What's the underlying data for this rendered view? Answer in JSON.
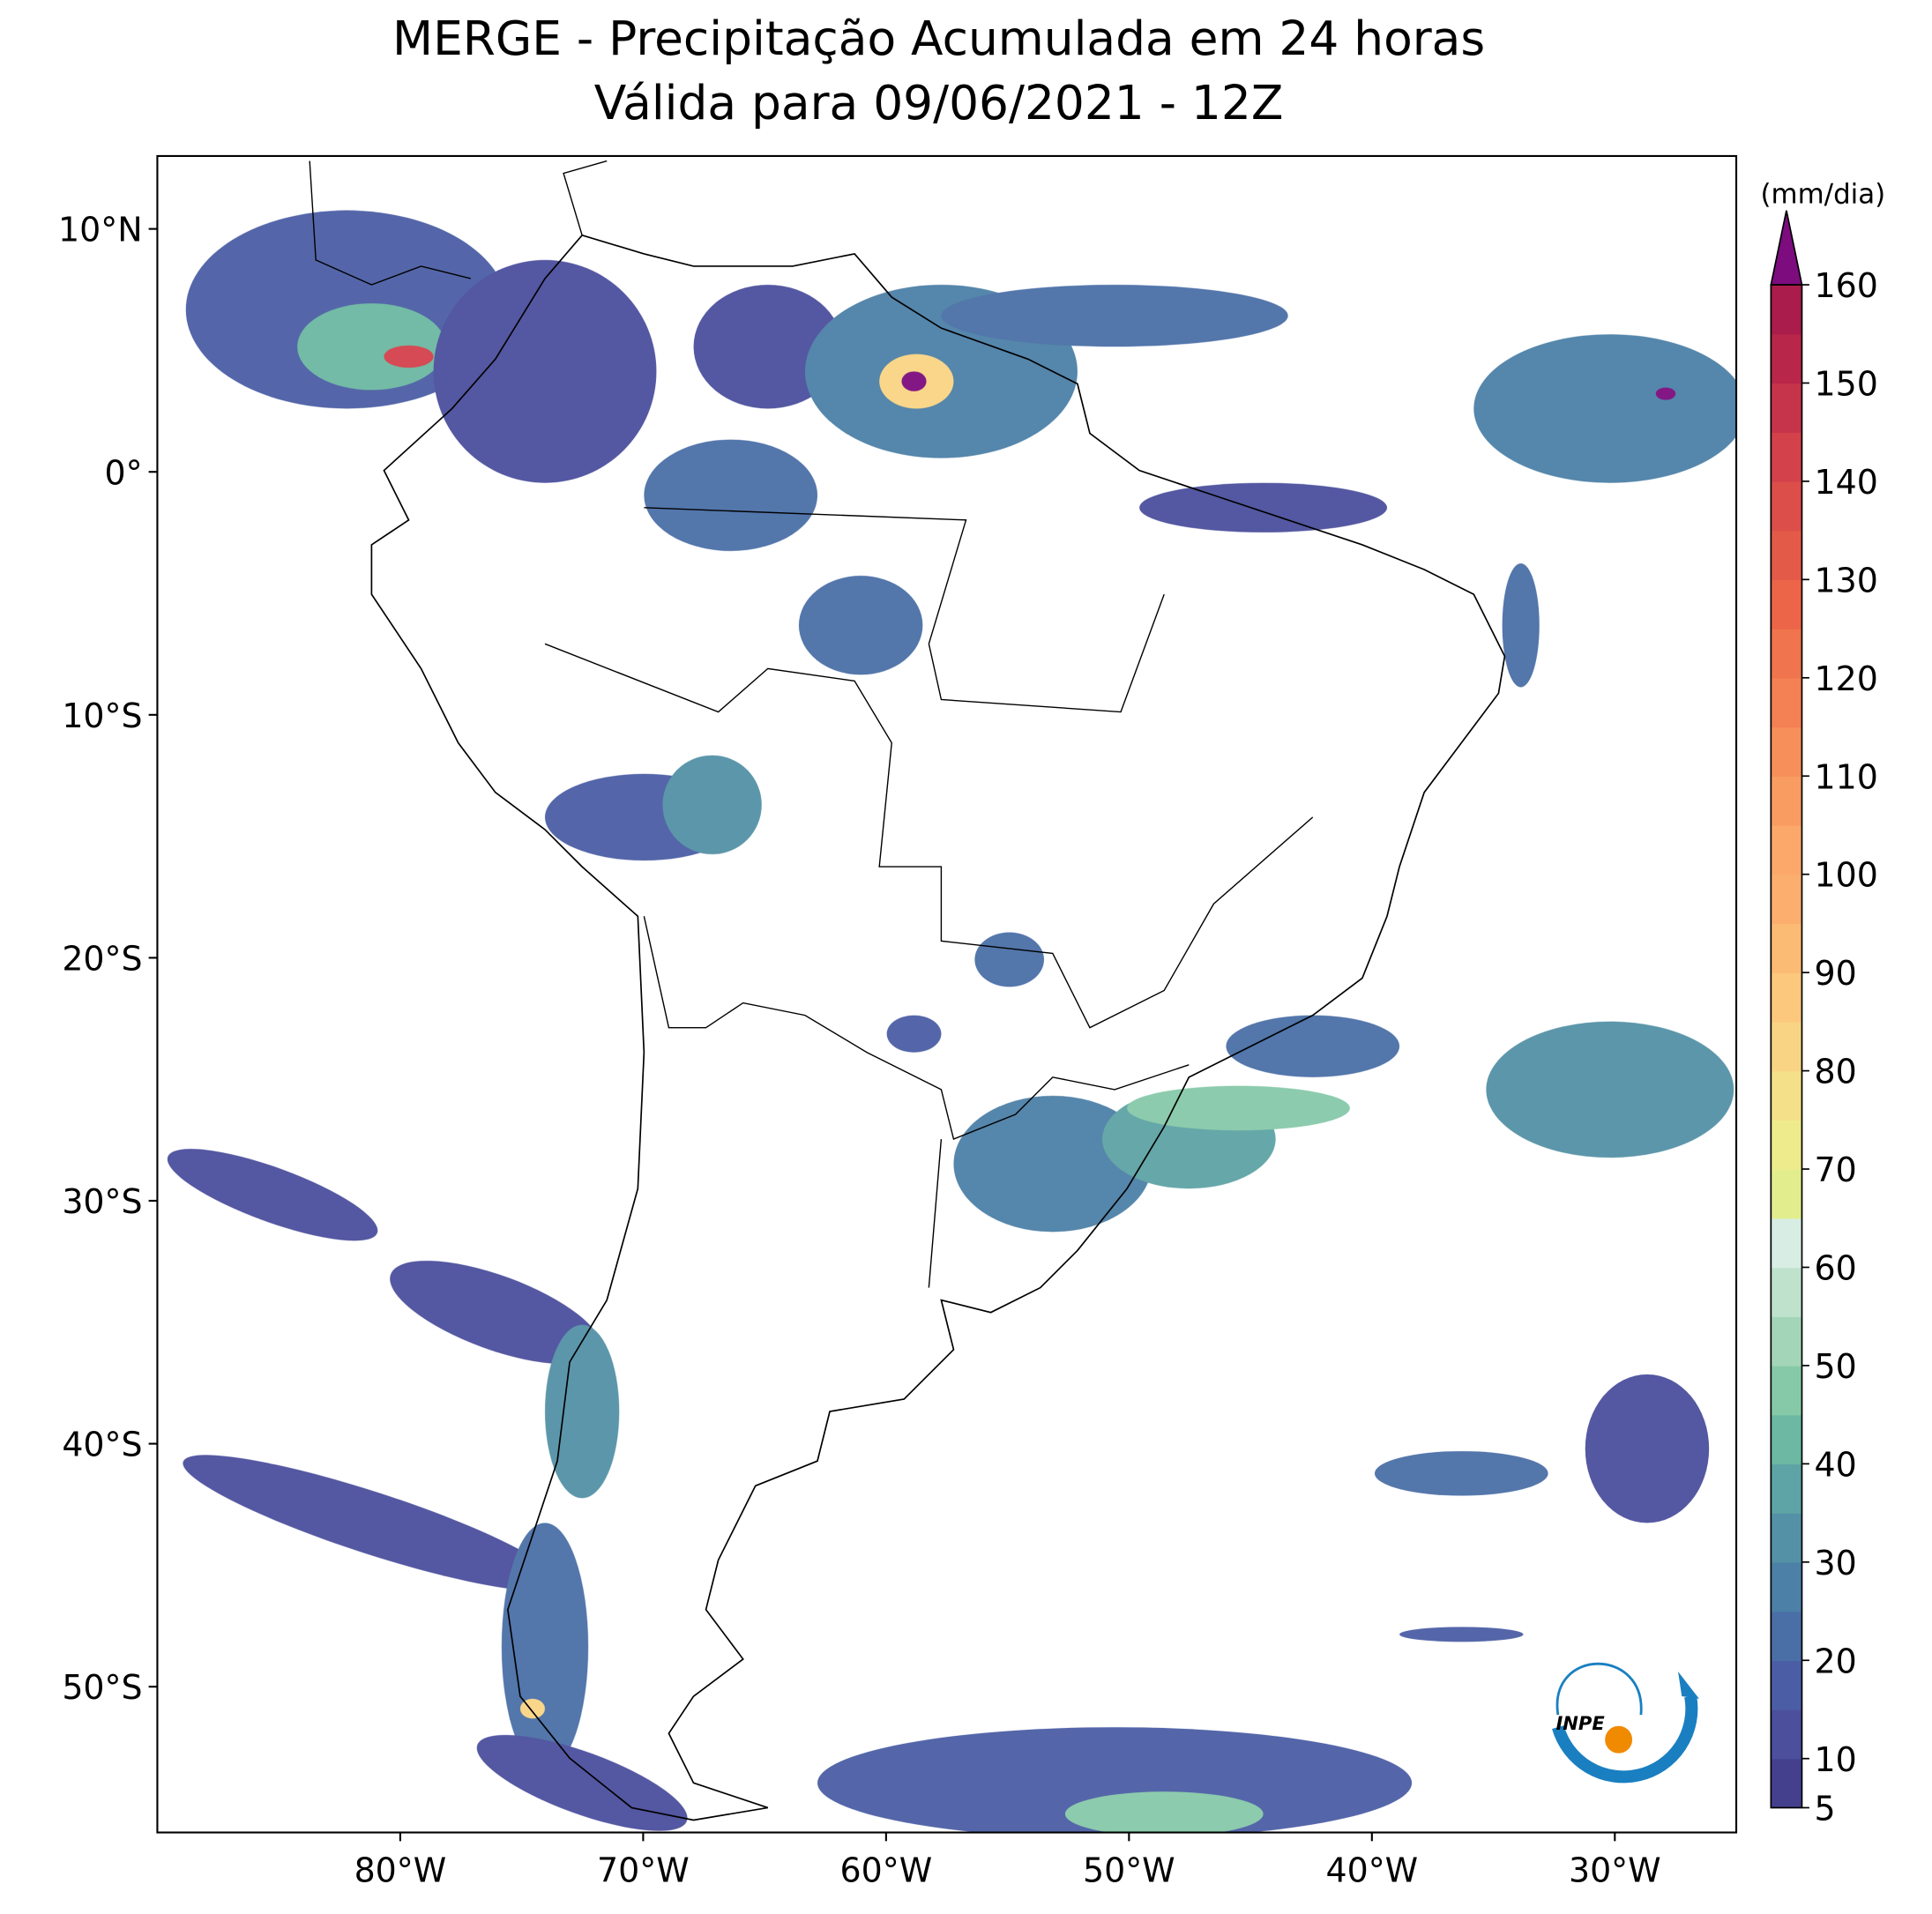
{
  "title": [
    "MERGE - Precipitação Acumulada em 24 horas",
    "Válida para 09/06/2021 - 12Z"
  ],
  "map": {
    "xlim": [
      -90,
      -25
    ],
    "ylim": [
      -56,
      13
    ],
    "xticks": [
      {
        "value": -80,
        "label": "80°W"
      },
      {
        "value": -70,
        "label": "70°W"
      },
      {
        "value": -60,
        "label": "60°W"
      },
      {
        "value": -50,
        "label": "50°W"
      },
      {
        "value": -40,
        "label": "40°W"
      },
      {
        "value": -30,
        "label": "30°W"
      }
    ],
    "yticks": [
      {
        "value": 10,
        "label": "10°N"
      },
      {
        "value": 0,
        "label": "0°"
      },
      {
        "value": -10,
        "label": "10°S"
      },
      {
        "value": -20,
        "label": "20°S"
      },
      {
        "value": -30,
        "label": "30°S"
      },
      {
        "value": -40,
        "label": "40°S"
      },
      {
        "value": -50,
        "label": "50°S"
      }
    ]
  },
  "colorbar": {
    "label": "(mm/dia)",
    "range": [
      5,
      160
    ],
    "ticks": [
      5,
      10,
      20,
      30,
      40,
      50,
      60,
      70,
      80,
      90,
      100,
      110,
      120,
      130,
      140,
      150,
      160
    ],
    "colors": [
      "#44408e",
      "#4b4f9c",
      "#4b5ea5",
      "#4a6fa7",
      "#4c80a7",
      "#5491a6",
      "#5ea3a5",
      "#6cb8a2",
      "#86c9a9",
      "#a3d6b8",
      "#bfe2cd",
      "#d8ede4",
      "#e2ee8e",
      "#eeeb8c",
      "#f5e08a",
      "#f9d484",
      "#fbc87d",
      "#fbbb75",
      "#fbae6e",
      "#fba86a",
      "#f89c62",
      "#f68f5a",
      "#f38153",
      "#f0744e",
      "#ec6549",
      "#e45a49",
      "#dc4e4a",
      "#d3414b",
      "#c6344b",
      "#b8274a",
      "#a91c4b"
    ],
    "extend_color": "#7d0c7f"
  },
  "logo": "INPE"
}
